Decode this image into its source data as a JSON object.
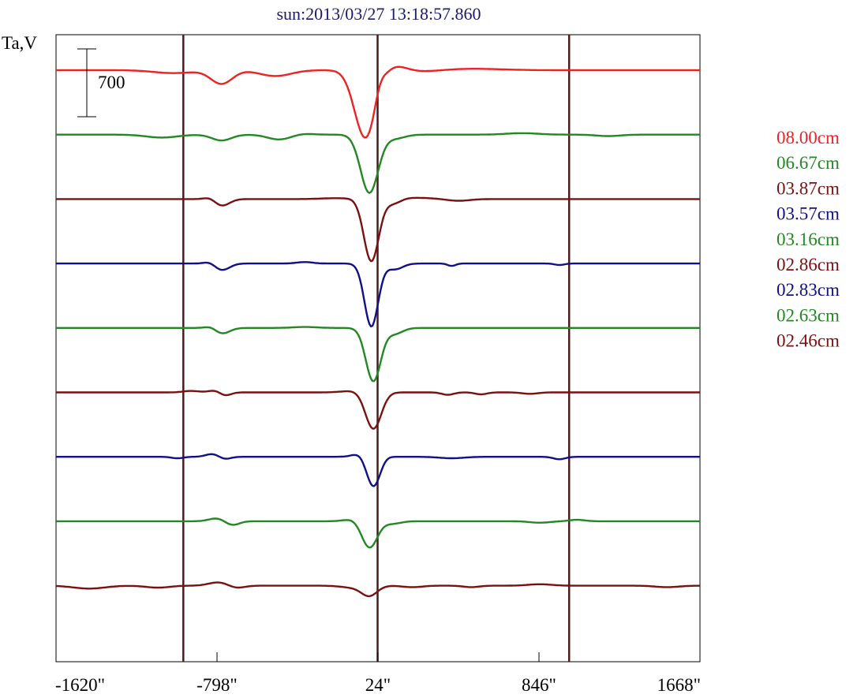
{
  "chart_data": {
    "type": "line",
    "title": "sun:2013/03/27 13:18:57.860",
    "xlabel": "",
    "ylabel": "Ta,V",
    "xlim": [
      -1620,
      1668
    ],
    "x_ticks": [
      -1620,
      -798,
      24,
      846,
      1668
    ],
    "x_tick_labels": [
      "-1620\"",
      "-798\"",
      "24\"",
      "846\"",
      "1668\""
    ],
    "vertical_lines_x": [
      -970,
      22,
      1000
    ],
    "scale_bar": {
      "label": "700",
      "value": 700
    },
    "series_offset": 700,
    "series": [
      {
        "name": "08.00cm",
        "color": "#ee2222",
        "features": [
          [
            -775,
            -140,
            55
          ],
          [
            -1020,
            -30,
            100
          ],
          [
            -500,
            -60,
            80
          ],
          [
            -40,
            -700,
            55
          ],
          [
            30,
            110,
            25
          ],
          [
            110,
            50,
            60
          ],
          [
            500,
            15,
            150
          ],
          [
            250,
            -15,
            100
          ]
        ]
      },
      {
        "name": "06.67cm",
        "color": "#228822",
        "features": [
          [
            -775,
            -60,
            50
          ],
          [
            -1080,
            -30,
            80
          ],
          [
            -480,
            -50,
            60
          ],
          [
            -20,
            -600,
            45
          ],
          [
            -360,
            10,
            50
          ],
          [
            110,
            -40,
            50
          ],
          [
            760,
            15,
            80
          ],
          [
            1200,
            -15,
            60
          ]
        ]
      },
      {
        "name": "03.87cm",
        "color": "#7a1010",
        "features": [
          [
            -775,
            -70,
            40
          ],
          [
            -830,
            25,
            30
          ],
          [
            -10,
            -650,
            38
          ],
          [
            -200,
            8,
            70
          ],
          [
            100,
            -60,
            40
          ],
          [
            150,
            15,
            150
          ],
          [
            430,
            -20,
            60
          ]
        ]
      },
      {
        "name": "03.57cm",
        "color": "#101088",
        "features": [
          [
            -775,
            -70,
            40
          ],
          [
            -830,
            25,
            30
          ],
          [
            -10,
            -650,
            35
          ],
          [
            -350,
            15,
            40
          ],
          [
            110,
            -60,
            40
          ],
          [
            400,
            -25,
            20
          ],
          [
            950,
            -15,
            25
          ]
        ]
      },
      {
        "name": "03.16cm",
        "color": "#228822",
        "features": [
          [
            -775,
            -60,
            40
          ],
          [
            -825,
            25,
            30
          ],
          [
            0,
            -550,
            38
          ],
          [
            110,
            -60,
            40
          ],
          [
            -350,
            10,
            60
          ]
        ]
      },
      {
        "name": "02.86cm",
        "color": "#7a1010",
        "features": [
          [
            -800,
            25,
            35
          ],
          [
            -760,
            -40,
            30
          ],
          [
            -930,
            15,
            40
          ],
          [
            0,
            -380,
            40
          ],
          [
            -100,
            15,
            60
          ],
          [
            380,
            -25,
            30
          ],
          [
            550,
            -20,
            30
          ],
          [
            800,
            -15,
            40
          ]
        ]
      },
      {
        "name": "02.83cm",
        "color": "#101088",
        "features": [
          [
            -820,
            30,
            35
          ],
          [
            -760,
            -25,
            30
          ],
          [
            -1000,
            -15,
            30
          ],
          [
            -60,
            40,
            40
          ],
          [
            0,
            -320,
            35
          ],
          [
            50,
            15,
            30
          ],
          [
            400,
            -15,
            60
          ],
          [
            950,
            -25,
            30
          ]
        ]
      },
      {
        "name": "02.63cm",
        "color": "#228822",
        "features": [
          [
            -800,
            30,
            40
          ],
          [
            -720,
            -40,
            35
          ],
          [
            -20,
            -280,
            40
          ],
          [
            -90,
            25,
            50
          ],
          [
            100,
            -25,
            40
          ],
          [
            850,
            -15,
            50
          ],
          [
            1040,
            15,
            40
          ]
        ]
      },
      {
        "name": "02.46cm",
        "color": "#7a1010",
        "features": [
          [
            -1450,
            -30,
            80
          ],
          [
            -1100,
            -20,
            60
          ],
          [
            -790,
            35,
            50
          ],
          [
            -700,
            -25,
            40
          ],
          [
            -20,
            -100,
            40
          ],
          [
            -100,
            -20,
            60
          ],
          [
            200,
            -15,
            50
          ],
          [
            500,
            -15,
            40
          ],
          [
            850,
            15,
            60
          ],
          [
            1500,
            -15,
            60
          ]
        ]
      }
    ],
    "legend_position": "right",
    "grid": false
  }
}
